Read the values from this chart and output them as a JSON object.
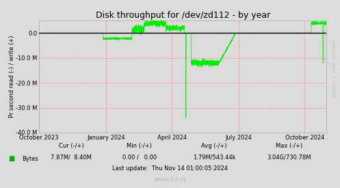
{
  "title": "Disk throughput for /dev/zd112 - by year",
  "ylabel": "Pr second read (-) / write (+)",
  "background_color": "#DCDCDC",
  "plot_bg_color": "#DCDCDC",
  "grid_color_major": "#FF8080",
  "grid_color_minor": "#FFCCCC",
  "line_color": "#00EE00",
  "zero_line_color": "#000000",
  "border_color": "#AAAAAA",
  "ylim": [
    -40000000,
    5000000
  ],
  "yticks": [
    -40000000,
    -30000000,
    -20000000,
    -10000000,
    0.0
  ],
  "ytick_labels": [
    "-40.0 M",
    "-30.0 M",
    "-20.0 M",
    "-10.0 M",
    "0.0"
  ],
  "xtick_positions": [
    0,
    92,
    183,
    275,
    366
  ],
  "xtick_labels": [
    "October 2023",
    "January 2024",
    "April 2024",
    "July 2024",
    "October 2024"
  ],
  "legend_label": "Bytes",
  "legend_color": "#00AA00",
  "cur_label": "Cur (-/+)",
  "cur_val": "7.87M/  8.40M",
  "min_label": "Min (-/+)",
  "min_val": "0.00 /   0.00",
  "avg_label": "Avg (-/+)",
  "avg_val": "1.79M/543.44k",
  "max_label": "Max (-/+)",
  "max_val": "3.04G/730.78M",
  "last_update": "Last update:  Thu Nov 14 01:00:05 2024",
  "munin_version": "Munin 2.0.75",
  "watermark": "RRDTOOL / TOBI OETIKER",
  "title_fontsize": 9,
  "axis_fontsize": 6,
  "stats_fontsize": 6,
  "munin_fontsize": 5
}
